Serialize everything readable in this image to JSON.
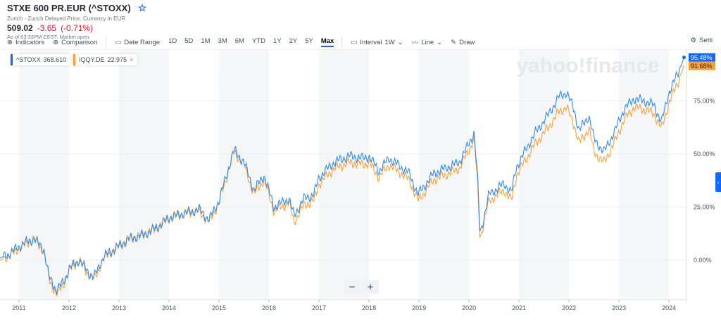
{
  "header": {
    "title": "STXE 600 PR.EUR (^STOXX)",
    "subtitle": "Zurich - Zurich Delayed Price. Currency in EUR",
    "price": "509.02",
    "change": "-3.65",
    "change_pct": "(-0.71%)",
    "as_of": "As of 03:33PM CEST. Market open.",
    "star_icon": "star-outline"
  },
  "toolbar": {
    "indicators": "Indicators",
    "comparison": "Comparison",
    "date_range": "Date Range",
    "ranges": [
      "1D",
      "5D",
      "1M",
      "3M",
      "6M",
      "YTD",
      "1Y",
      "2Y",
      "5Y",
      "Max"
    ],
    "active_range": "Max",
    "interval_label": "Interval",
    "interval_value": "1W",
    "line": "Line",
    "draw": "Draw",
    "settings": "Setti"
  },
  "legend": [
    {
      "symbol": "^STOXX",
      "value": "368.610",
      "color": "#0f69ff"
    },
    {
      "symbol": "IQQY.DE",
      "value": "22.975",
      "color": "#ff9d2e"
    }
  ],
  "watermark": "yahoo!finance",
  "zoom": {
    "minus": "−",
    "plus": "+"
  },
  "colors": {
    "stoxx": "#2d8cf0",
    "iqqy": "#f7a23b",
    "accent": "#0f69ff"
  },
  "chart_data": {
    "type": "line",
    "x_ticks": [
      "2011",
      "2012",
      "2013",
      "2014",
      "2015",
      "2016",
      "2017",
      "2018",
      "2019",
      "2020",
      "2021",
      "2022",
      "2023",
      "2024"
    ],
    "y_ticks": [
      "0.00%",
      "25.00%",
      "50.00%",
      "75.00%"
    ],
    "xlim": [
      2010.62,
      2024.35
    ],
    "ylim": [
      -17,
      100
    ],
    "y_unit": "%",
    "last_labels": [
      "95.48%",
      "91.68%"
    ],
    "series": [
      {
        "name": "^STOXX",
        "color": "#2d8cf0",
        "points": [
          [
            2010.62,
            1
          ],
          [
            2010.8,
            3
          ],
          [
            2011.1,
            8
          ],
          [
            2011.3,
            10
          ],
          [
            2011.5,
            5
          ],
          [
            2011.6,
            -8
          ],
          [
            2011.75,
            -14
          ],
          [
            2011.9,
            -10
          ],
          [
            2012.0,
            -4
          ],
          [
            2012.2,
            0
          ],
          [
            2012.4,
            -6
          ],
          [
            2012.5,
            -8
          ],
          [
            2012.7,
            2
          ],
          [
            2012.9,
            5
          ],
          [
            2013.2,
            10
          ],
          [
            2013.5,
            12
          ],
          [
            2013.8,
            16
          ],
          [
            2014.0,
            20
          ],
          [
            2014.3,
            22
          ],
          [
            2014.6,
            24
          ],
          [
            2014.8,
            19
          ],
          [
            2015.0,
            28
          ],
          [
            2015.3,
            52
          ],
          [
            2015.5,
            46
          ],
          [
            2015.7,
            33
          ],
          [
            2015.9,
            40
          ],
          [
            2016.1,
            25
          ],
          [
            2016.4,
            29
          ],
          [
            2016.5,
            21
          ],
          [
            2016.7,
            29
          ],
          [
            2016.9,
            31
          ],
          [
            2017.0,
            39
          ],
          [
            2017.3,
            46
          ],
          [
            2017.6,
            49
          ],
          [
            2017.9,
            48
          ],
          [
            2018.0,
            49
          ],
          [
            2018.2,
            42
          ],
          [
            2018.4,
            48
          ],
          [
            2018.8,
            41
          ],
          [
            2018.98,
            31
          ],
          [
            2019.3,
            41
          ],
          [
            2019.6,
            44
          ],
          [
            2019.8,
            46
          ],
          [
            2019.98,
            54
          ],
          [
            2020.1,
            60
          ],
          [
            2020.17,
            40
          ],
          [
            2020.22,
            12
          ],
          [
            2020.4,
            31
          ],
          [
            2020.7,
            36
          ],
          [
            2020.85,
            32
          ],
          [
            2020.95,
            44
          ],
          [
            2021.3,
            59
          ],
          [
            2021.6,
            69
          ],
          [
            2021.8,
            77
          ],
          [
            2021.95,
            79
          ],
          [
            2022.1,
            71
          ],
          [
            2022.2,
            61
          ],
          [
            2022.4,
            68
          ],
          [
            2022.5,
            57
          ],
          [
            2022.7,
            51
          ],
          [
            2022.9,
            60
          ],
          [
            2023.1,
            71
          ],
          [
            2023.3,
            76
          ],
          [
            2023.5,
            75
          ],
          [
            2023.7,
            73
          ],
          [
            2023.85,
            65
          ],
          [
            2024.0,
            79
          ],
          [
            2024.2,
            89
          ],
          [
            2024.3,
            95.48
          ]
        ]
      },
      {
        "name": "IQQY.DE",
        "color": "#f7a23b",
        "points": [
          [
            2010.62,
            0
          ],
          [
            2010.8,
            2
          ],
          [
            2011.1,
            7
          ],
          [
            2011.3,
            10
          ],
          [
            2011.5,
            4
          ],
          [
            2011.6,
            -9
          ],
          [
            2011.75,
            -16
          ],
          [
            2011.9,
            -11
          ],
          [
            2012.0,
            -5
          ],
          [
            2012.2,
            0
          ],
          [
            2012.4,
            -7
          ],
          [
            2012.5,
            -9
          ],
          [
            2012.7,
            1
          ],
          [
            2012.9,
            5
          ],
          [
            2013.2,
            10
          ],
          [
            2013.5,
            12
          ],
          [
            2013.8,
            16
          ],
          [
            2014.0,
            20
          ],
          [
            2014.3,
            22
          ],
          [
            2014.6,
            23
          ],
          [
            2014.8,
            18
          ],
          [
            2015.0,
            27
          ],
          [
            2015.3,
            51
          ],
          [
            2015.5,
            45
          ],
          [
            2015.7,
            31
          ],
          [
            2015.9,
            38
          ],
          [
            2016.1,
            23
          ],
          [
            2016.4,
            27
          ],
          [
            2016.5,
            18
          ],
          [
            2016.7,
            26
          ],
          [
            2016.9,
            28
          ],
          [
            2017.0,
            36
          ],
          [
            2017.3,
            43
          ],
          [
            2017.6,
            46
          ],
          [
            2017.9,
            45
          ],
          [
            2018.0,
            46
          ],
          [
            2018.2,
            39
          ],
          [
            2018.4,
            45
          ],
          [
            2018.8,
            38
          ],
          [
            2018.98,
            28
          ],
          [
            2019.3,
            38
          ],
          [
            2019.6,
            41
          ],
          [
            2019.8,
            43
          ],
          [
            2019.98,
            51
          ],
          [
            2020.1,
            57
          ],
          [
            2020.17,
            37
          ],
          [
            2020.22,
            10
          ],
          [
            2020.4,
            28
          ],
          [
            2020.7,
            33
          ],
          [
            2020.85,
            28
          ],
          [
            2020.95,
            40
          ],
          [
            2021.3,
            54
          ],
          [
            2021.6,
            63
          ],
          [
            2021.8,
            70
          ],
          [
            2021.95,
            72
          ],
          [
            2022.1,
            64
          ],
          [
            2022.2,
            55
          ],
          [
            2022.4,
            62
          ],
          [
            2022.5,
            51
          ],
          [
            2022.7,
            46
          ],
          [
            2022.9,
            55
          ],
          [
            2023.1,
            66
          ],
          [
            2023.3,
            72
          ],
          [
            2023.5,
            71
          ],
          [
            2023.7,
            69
          ],
          [
            2023.85,
            62
          ],
          [
            2024.0,
            74
          ],
          [
            2024.2,
            85
          ],
          [
            2024.3,
            91.68
          ]
        ]
      }
    ]
  }
}
